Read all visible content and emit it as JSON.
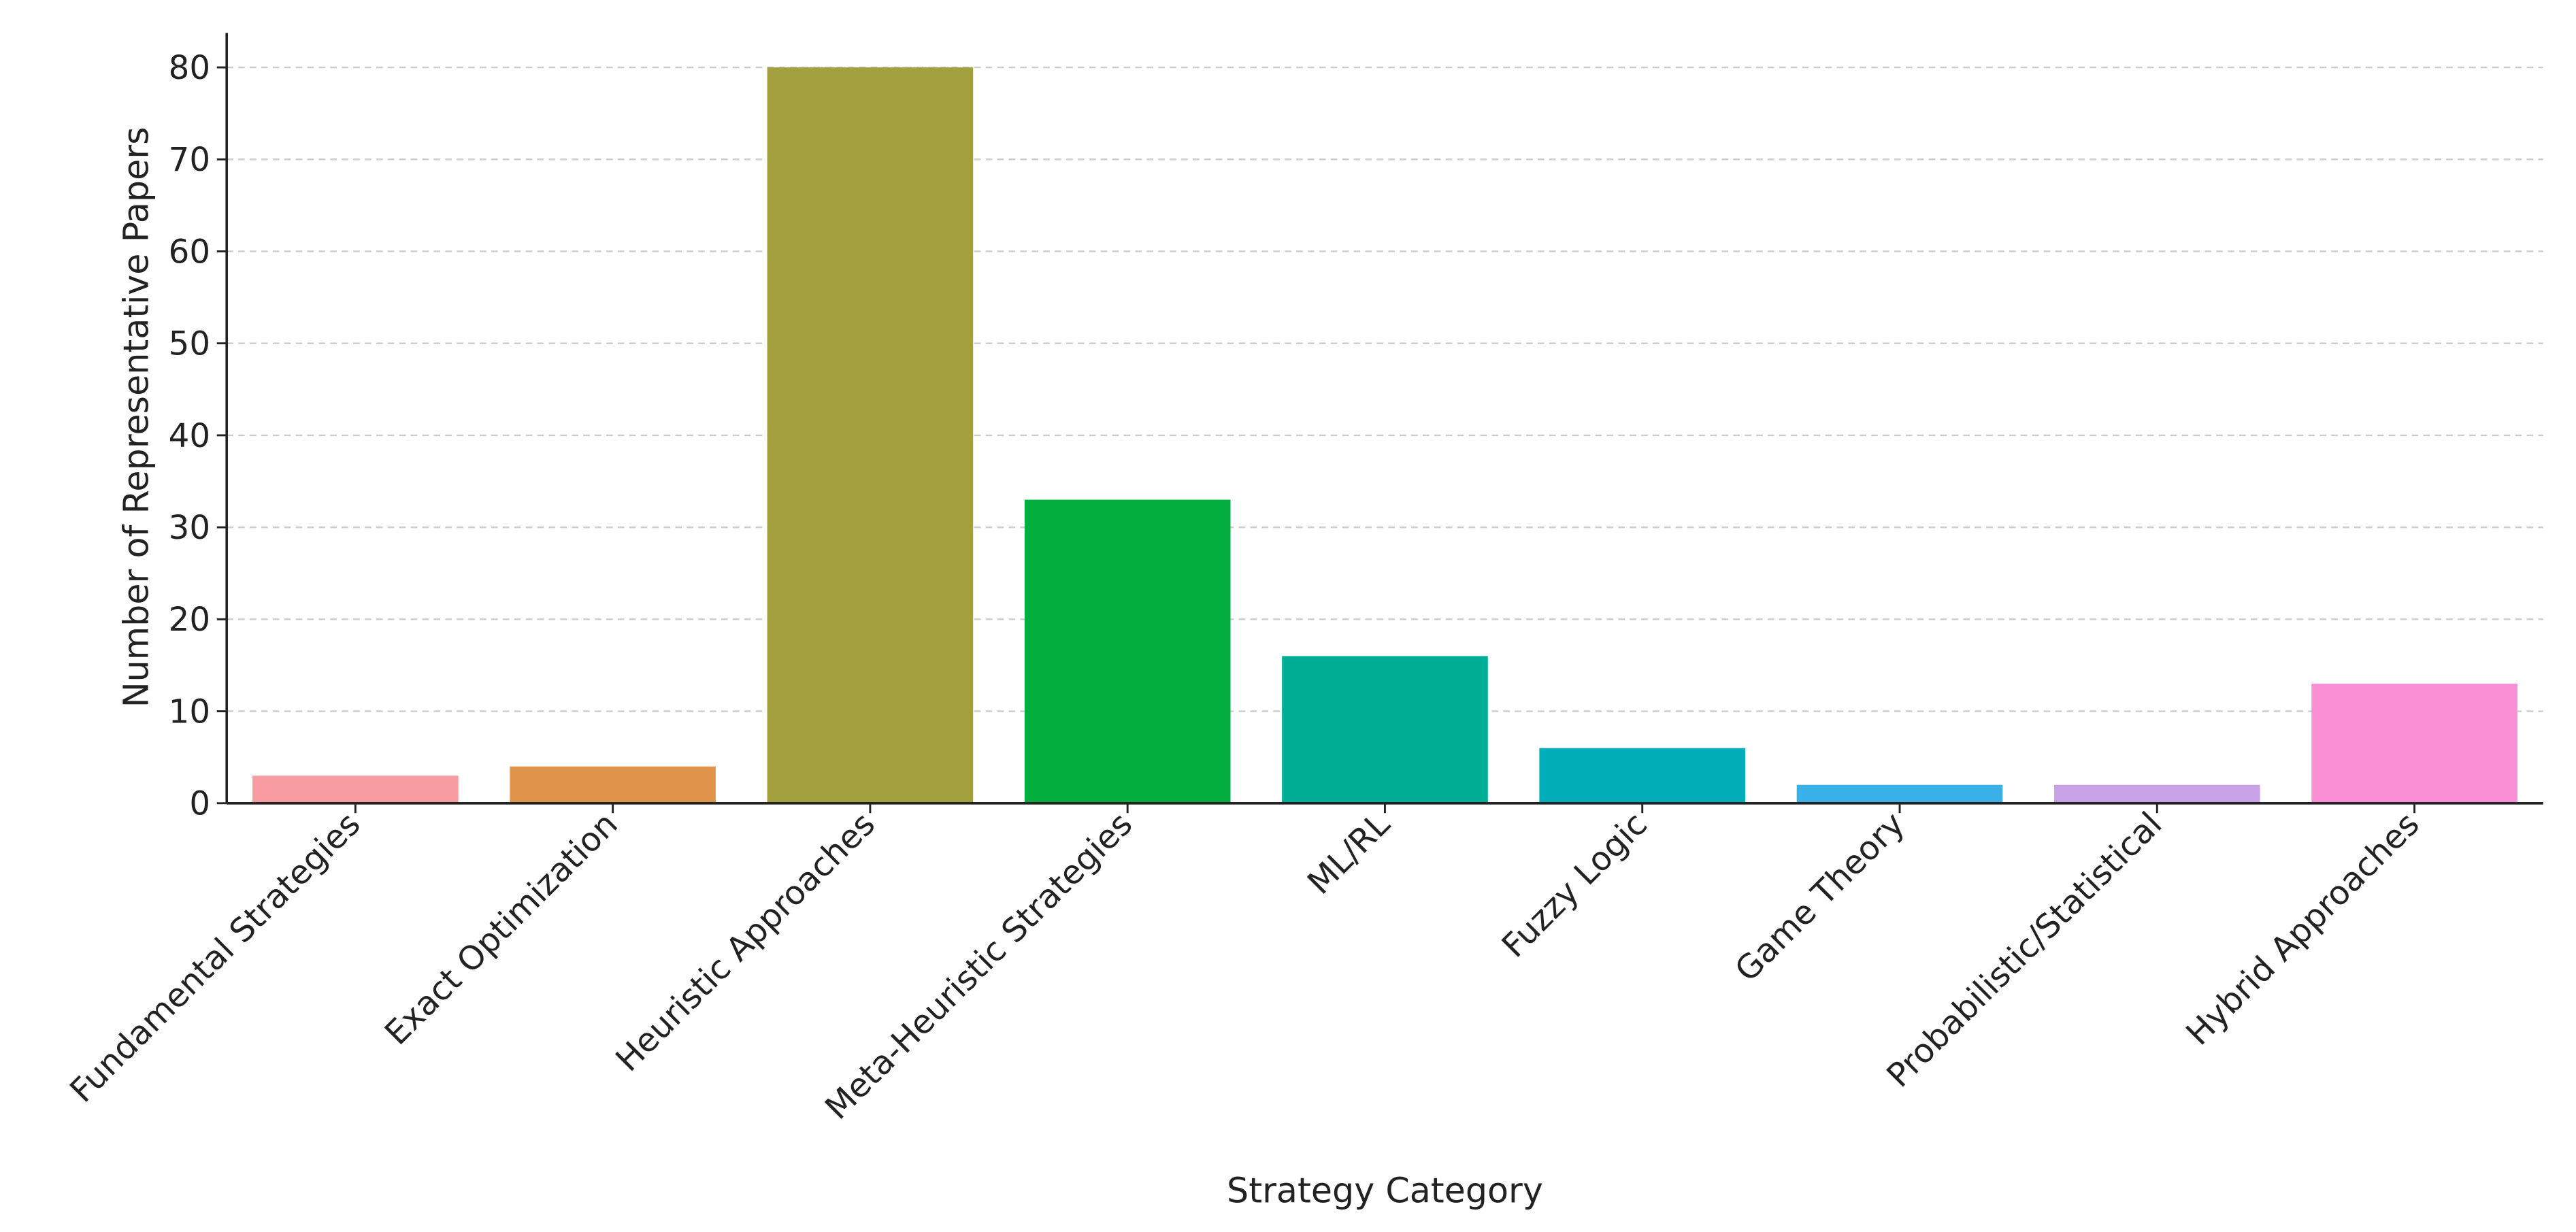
{
  "chart_data": {
    "type": "bar",
    "x_label": "Strategy Category",
    "y_label": "Number of Representative Papers",
    "categories": [
      "Fundamental Strategies",
      "Exact Optimization",
      "Heuristic Approaches",
      "Meta-Heuristic Strategies",
      "ML/RL",
      "Fuzzy Logic",
      "Game Theory",
      "Probabilistic/Statistical",
      "Hybrid Approaches"
    ],
    "values": [
      3,
      4,
      80,
      33,
      16,
      6,
      2,
      2,
      13
    ],
    "colors": [
      "#f99ca1",
      "#e0954a",
      "#a3a03f",
      "#02ae3e",
      "#00ad95",
      "#00adb8",
      "#39b0e8",
      "#c9a2e8",
      "#fb8fd6"
    ],
    "ylim": [
      0,
      83.75
    ],
    "yticks": [
      0,
      10,
      20,
      30,
      40,
      50,
      60,
      70,
      80
    ],
    "grid": true
  }
}
